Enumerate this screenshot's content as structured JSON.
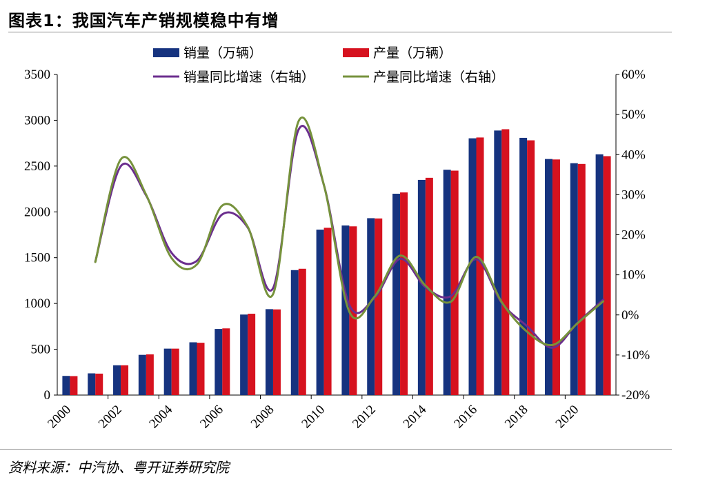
{
  "header": {
    "title": "图表1：我国汽车产销规模稳中有增"
  },
  "footer": {
    "source": "资料来源：中汽协、粤开证券研究院"
  },
  "colors": {
    "sales": "#16337f",
    "production": "#d6121f",
    "sales_growth": "#6b2e8e",
    "production_growth": "#76923c"
  },
  "chart_data": {
    "type": "bar",
    "categories": [
      "2000",
      "2001",
      "2002",
      "2003",
      "2004",
      "2005",
      "2006",
      "2007",
      "2008",
      "2009",
      "2010",
      "2011",
      "2012",
      "2013",
      "2014",
      "2015",
      "2016",
      "2017",
      "2018",
      "2019",
      "2020",
      "2021"
    ],
    "x_tick_labels": [
      "2000",
      "2002",
      "2004",
      "2006",
      "2008",
      "2010",
      "2012",
      "2014",
      "2016",
      "2018",
      "2020"
    ],
    "series": [
      {
        "name": "销量（万辆）",
        "type": "bar",
        "axis": "left",
        "values": [
          209,
          237,
          325,
          439,
          507,
          576,
          722,
          879,
          938,
          1364,
          1806,
          1851,
          1931,
          2198,
          2349,
          2460,
          2803,
          2888,
          2808,
          2577,
          2531,
          2628
        ]
      },
      {
        "name": "产量（万辆）",
        "type": "bar",
        "axis": "left",
        "values": [
          207,
          234,
          325,
          444,
          507,
          571,
          728,
          888,
          935,
          1379,
          1826,
          1842,
          1928,
          2212,
          2372,
          2450,
          2812,
          2902,
          2781,
          2572,
          2523,
          2608
        ]
      },
      {
        "name": "销量同比增速（右轴）",
        "type": "line",
        "axis": "right",
        "values": [
          null,
          13.3,
          37.1,
          null,
          15.5,
          13.5,
          25.1,
          21.8,
          6.7,
          46.2,
          32.4,
          2.5,
          4.3,
          14.0,
          6.9,
          4.7,
          13.9,
          3.0,
          -2.8,
          -8.2,
          -1.9,
          3.8
        ]
      },
      {
        "name": "产量同比增速（右轴）",
        "type": "line",
        "axis": "right",
        "values": [
          null,
          13.2,
          38.8,
          null,
          14.2,
          12.6,
          27.3,
          22.0,
          5.2,
          48.3,
          32.4,
          0.8,
          4.6,
          14.8,
          7.3,
          3.3,
          14.5,
          3.2,
          -4.2,
          -7.5,
          -2.0,
          3.4
        ]
      }
    ],
    "ylim": [
      0,
      3500
    ],
    "y_ticks": [
      0,
      500,
      1000,
      1500,
      2000,
      2500,
      3000,
      3500
    ],
    "y2lim": [
      -20,
      60
    ],
    "y2_ticks": [
      "-20%",
      "-10%",
      "0%",
      "10%",
      "20%",
      "30%",
      "40%",
      "50%",
      "60%"
    ],
    "legend_position": "top",
    "grid": false
  }
}
